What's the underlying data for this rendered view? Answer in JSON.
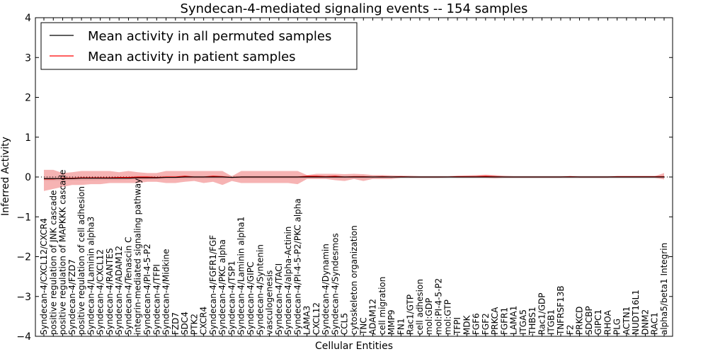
{
  "chart_data": {
    "type": "line",
    "title": "Syndecan-4-mediated signaling events -- 154 samples",
    "xlabel": "Cellular Entities",
    "ylabel": "Inferred Activity",
    "ylim": [
      -4,
      4
    ],
    "yticks": [
      -4,
      -3,
      -2,
      -1,
      0,
      1,
      2,
      3,
      4
    ],
    "ytick_labels": [
      "−4",
      "−3",
      "−2",
      "−1",
      "0",
      "1",
      "2",
      "3",
      "4"
    ],
    "categories": [
      "Syndecan-4/CXCL12/CXCR4",
      "positive regulation of JNK cascade",
      "positive regulation of MAPKKK cascade",
      "Syndecan-4/FZD7",
      "positive regulation of cell adhesion",
      "Syndecan-4/Laminin alpha3",
      "Syndecan-4/CXCL12",
      "Syndecan-4/RANTES",
      "Syndecan-4/ADAM12",
      "Syndecan-4/Tenascin C",
      "integrin-mediated signaling pathway",
      "Syndecan-4/PI-4-5-P2",
      "Syndecan-4/TFPI",
      "Syndecan-4/Midkine",
      "FZD7",
      "SDC4",
      "PTK2",
      "CXCR4",
      "Syndecan-4/FGFR1/FGF",
      "Syndecan-4/PKC alpha",
      "Syndecan-4/TSP1",
      "Syndecan-4/Laminin alpha1",
      "Syndecan-4/GIPC",
      "Syndecan-4/Syntenin",
      "vasculogenesis",
      "Syndecan-4/TACI",
      "Syndecan-4/alpha-Actinin",
      "Syndecan-4/PI-4-5-P2/PKC alpha",
      "LAMA3",
      "CXCL12",
      "Syndecan-4/Dynamin",
      "Syndecan-4/Syndesmos",
      "CCL5",
      "cytoskeleton organization",
      "TNC",
      "ADAM12",
      "cell migration",
      "MMP9",
      "FN1",
      "Rac1/GTP",
      "cell adhesion",
      "mol:GDP",
      "mol:PI-4-5-P2",
      "mol:GTP",
      "TFPI",
      "MDK",
      "FGF6",
      "FGF2",
      "PRKCA",
      "FGFR1",
      "LAMA1",
      "ITGA5",
      "THBS1",
      "Rac1/GDP",
      "ITGB1",
      "TNFRSF13B",
      "F2",
      "PRKCD",
      "SDCBP",
      "GIPC1",
      "RHOA",
      "PLG",
      "ACTN1",
      "NUDT16L1",
      "DNM2",
      "RAC1",
      "alpha5/beta1 Integrin"
    ],
    "series": [
      {
        "name": "Mean activity in all permuted samples",
        "color": "#000000",
        "values": [
          -0.04,
          -0.04,
          -0.04,
          -0.04,
          -0.03,
          -0.03,
          -0.03,
          -0.03,
          -0.03,
          -0.03,
          -0.02,
          -0.02,
          -0.02,
          -0.01,
          -0.01,
          0.0,
          0.0,
          0.0,
          0.0,
          0.0,
          -0.01,
          0.0,
          0.0,
          0.0,
          0.0,
          0.0,
          0.0,
          0.0,
          0.0,
          0.0,
          0.0,
          0.0,
          0.0,
          0.0,
          0.0,
          0.0,
          0.0,
          0.0,
          0.0,
          0.0,
          0.0,
          0.0,
          0.0,
          0.0,
          0.0,
          0.0,
          0.0,
          0.0,
          0.0,
          0.0,
          0.0,
          0.0,
          0.0,
          0.0,
          0.0,
          0.0,
          0.0,
          0.0,
          0.0,
          0.0,
          0.0,
          0.0,
          0.0,
          0.0,
          0.0,
          0.0,
          0.0
        ],
        "band_low": [
          -0.1,
          -0.1,
          -0.1,
          -0.09,
          -0.09,
          -0.09,
          -0.08,
          -0.08,
          -0.08,
          -0.07,
          -0.07,
          -0.07,
          -0.06,
          -0.06,
          -0.06,
          -0.06,
          -0.05,
          -0.05,
          -0.05,
          -0.05,
          -0.05,
          -0.05,
          -0.05,
          -0.05,
          -0.05,
          -0.05,
          -0.05,
          -0.05,
          -0.04,
          -0.04,
          -0.04,
          -0.04,
          -0.04,
          -0.04,
          -0.04,
          -0.04,
          -0.04,
          -0.04,
          -0.04,
          -0.04,
          -0.04,
          -0.04,
          -0.04,
          -0.04,
          -0.04,
          -0.04,
          -0.04,
          -0.04,
          -0.04,
          -0.04,
          -0.04,
          -0.04,
          -0.04,
          -0.04,
          -0.04,
          -0.04,
          -0.04,
          -0.04,
          -0.04,
          -0.04,
          -0.04,
          -0.04,
          -0.04,
          -0.04,
          -0.04,
          -0.04,
          -0.04
        ],
        "band_high": [
          0.02,
          0.02,
          0.02,
          0.02,
          0.02,
          0.02,
          0.02,
          0.02,
          0.02,
          0.02,
          0.03,
          0.03,
          0.03,
          0.03,
          0.03,
          0.03,
          0.03,
          0.03,
          0.03,
          0.03,
          0.03,
          0.03,
          0.03,
          0.03,
          0.03,
          0.03,
          0.03,
          0.03,
          0.03,
          0.03,
          0.03,
          0.03,
          0.03,
          0.03,
          0.03,
          0.03,
          0.03,
          0.03,
          0.03,
          0.03,
          0.03,
          0.03,
          0.03,
          0.03,
          0.03,
          0.03,
          0.03,
          0.03,
          0.03,
          0.03,
          0.03,
          0.03,
          0.03,
          0.03,
          0.03,
          0.03,
          0.03,
          0.03,
          0.03,
          0.03,
          0.03,
          0.03,
          0.03,
          0.03,
          0.03,
          0.03,
          0.03
        ]
      },
      {
        "name": "Mean activity in patient samples",
        "color": "#ff0000",
        "values": [
          -0.05,
          -0.05,
          -0.03,
          -0.03,
          -0.02,
          -0.02,
          -0.02,
          -0.02,
          -0.01,
          -0.01,
          0.0,
          0.0,
          -0.01,
          0.0,
          0.0,
          0.02,
          0.0,
          0.0,
          0.02,
          0.01,
          -0.01,
          0.0,
          0.0,
          0.0,
          0.0,
          0.0,
          0.0,
          0.0,
          0.02,
          0.02,
          0.01,
          0.02,
          0.0,
          0.01,
          0.01,
          0.0,
          0.01,
          0.0,
          0.01,
          0.0,
          0.0,
          0.0,
          0.0,
          0.0,
          0.01,
          0.01,
          0.01,
          0.02,
          0.01,
          0.0,
          0.0,
          0.0,
          0.0,
          0.0,
          0.0,
          0.0,
          0.01,
          0.0,
          0.0,
          0.0,
          0.0,
          0.01,
          0.01,
          0.01,
          0.01,
          0.01,
          0.01
        ],
        "band_low": [
          -0.35,
          -0.3,
          -0.25,
          -0.2,
          -0.2,
          -0.18,
          -0.18,
          -0.15,
          -0.15,
          -0.15,
          -0.15,
          -0.12,
          -0.12,
          -0.15,
          -0.15,
          -0.12,
          -0.1,
          -0.15,
          -0.12,
          -0.2,
          -0.1,
          -0.15,
          -0.15,
          -0.15,
          -0.15,
          -0.15,
          -0.15,
          -0.18,
          -0.05,
          -0.05,
          -0.05,
          -0.08,
          -0.1,
          -0.05,
          -0.1,
          -0.05,
          -0.05,
          -0.05,
          -0.02,
          -0.02,
          -0.02,
          -0.02,
          -0.02,
          -0.01,
          -0.02,
          -0.02,
          -0.02,
          -0.02,
          -0.03,
          -0.02,
          -0.02,
          -0.02,
          -0.02,
          -0.02,
          -0.02,
          -0.02,
          -0.02,
          -0.02,
          -0.02,
          -0.02,
          -0.02,
          -0.02,
          -0.02,
          -0.02,
          -0.02,
          -0.02,
          -0.06
        ],
        "band_high": [
          0.18,
          0.18,
          0.1,
          0.12,
          0.15,
          0.15,
          0.15,
          0.15,
          0.12,
          0.15,
          0.12,
          0.1,
          0.1,
          0.15,
          0.15,
          0.15,
          0.15,
          0.15,
          0.15,
          0.15,
          0.02,
          0.15,
          0.15,
          0.15,
          0.15,
          0.15,
          0.15,
          0.15,
          0.05,
          0.08,
          0.08,
          0.08,
          0.07,
          0.08,
          0.07,
          0.05,
          0.05,
          0.04,
          0.03,
          0.03,
          0.02,
          0.02,
          0.02,
          0.02,
          0.03,
          0.04,
          0.05,
          0.06,
          0.05,
          0.03,
          0.02,
          0.02,
          0.02,
          0.02,
          0.02,
          0.02,
          0.02,
          0.02,
          0.02,
          0.02,
          0.02,
          0.02,
          0.02,
          0.02,
          0.02,
          0.02,
          0.1
        ]
      }
    ],
    "legend": {
      "placement": "upper-left",
      "entries": [
        "Mean activity in all permuted samples",
        "Mean activity in patient samples"
      ]
    },
    "grid": false
  }
}
